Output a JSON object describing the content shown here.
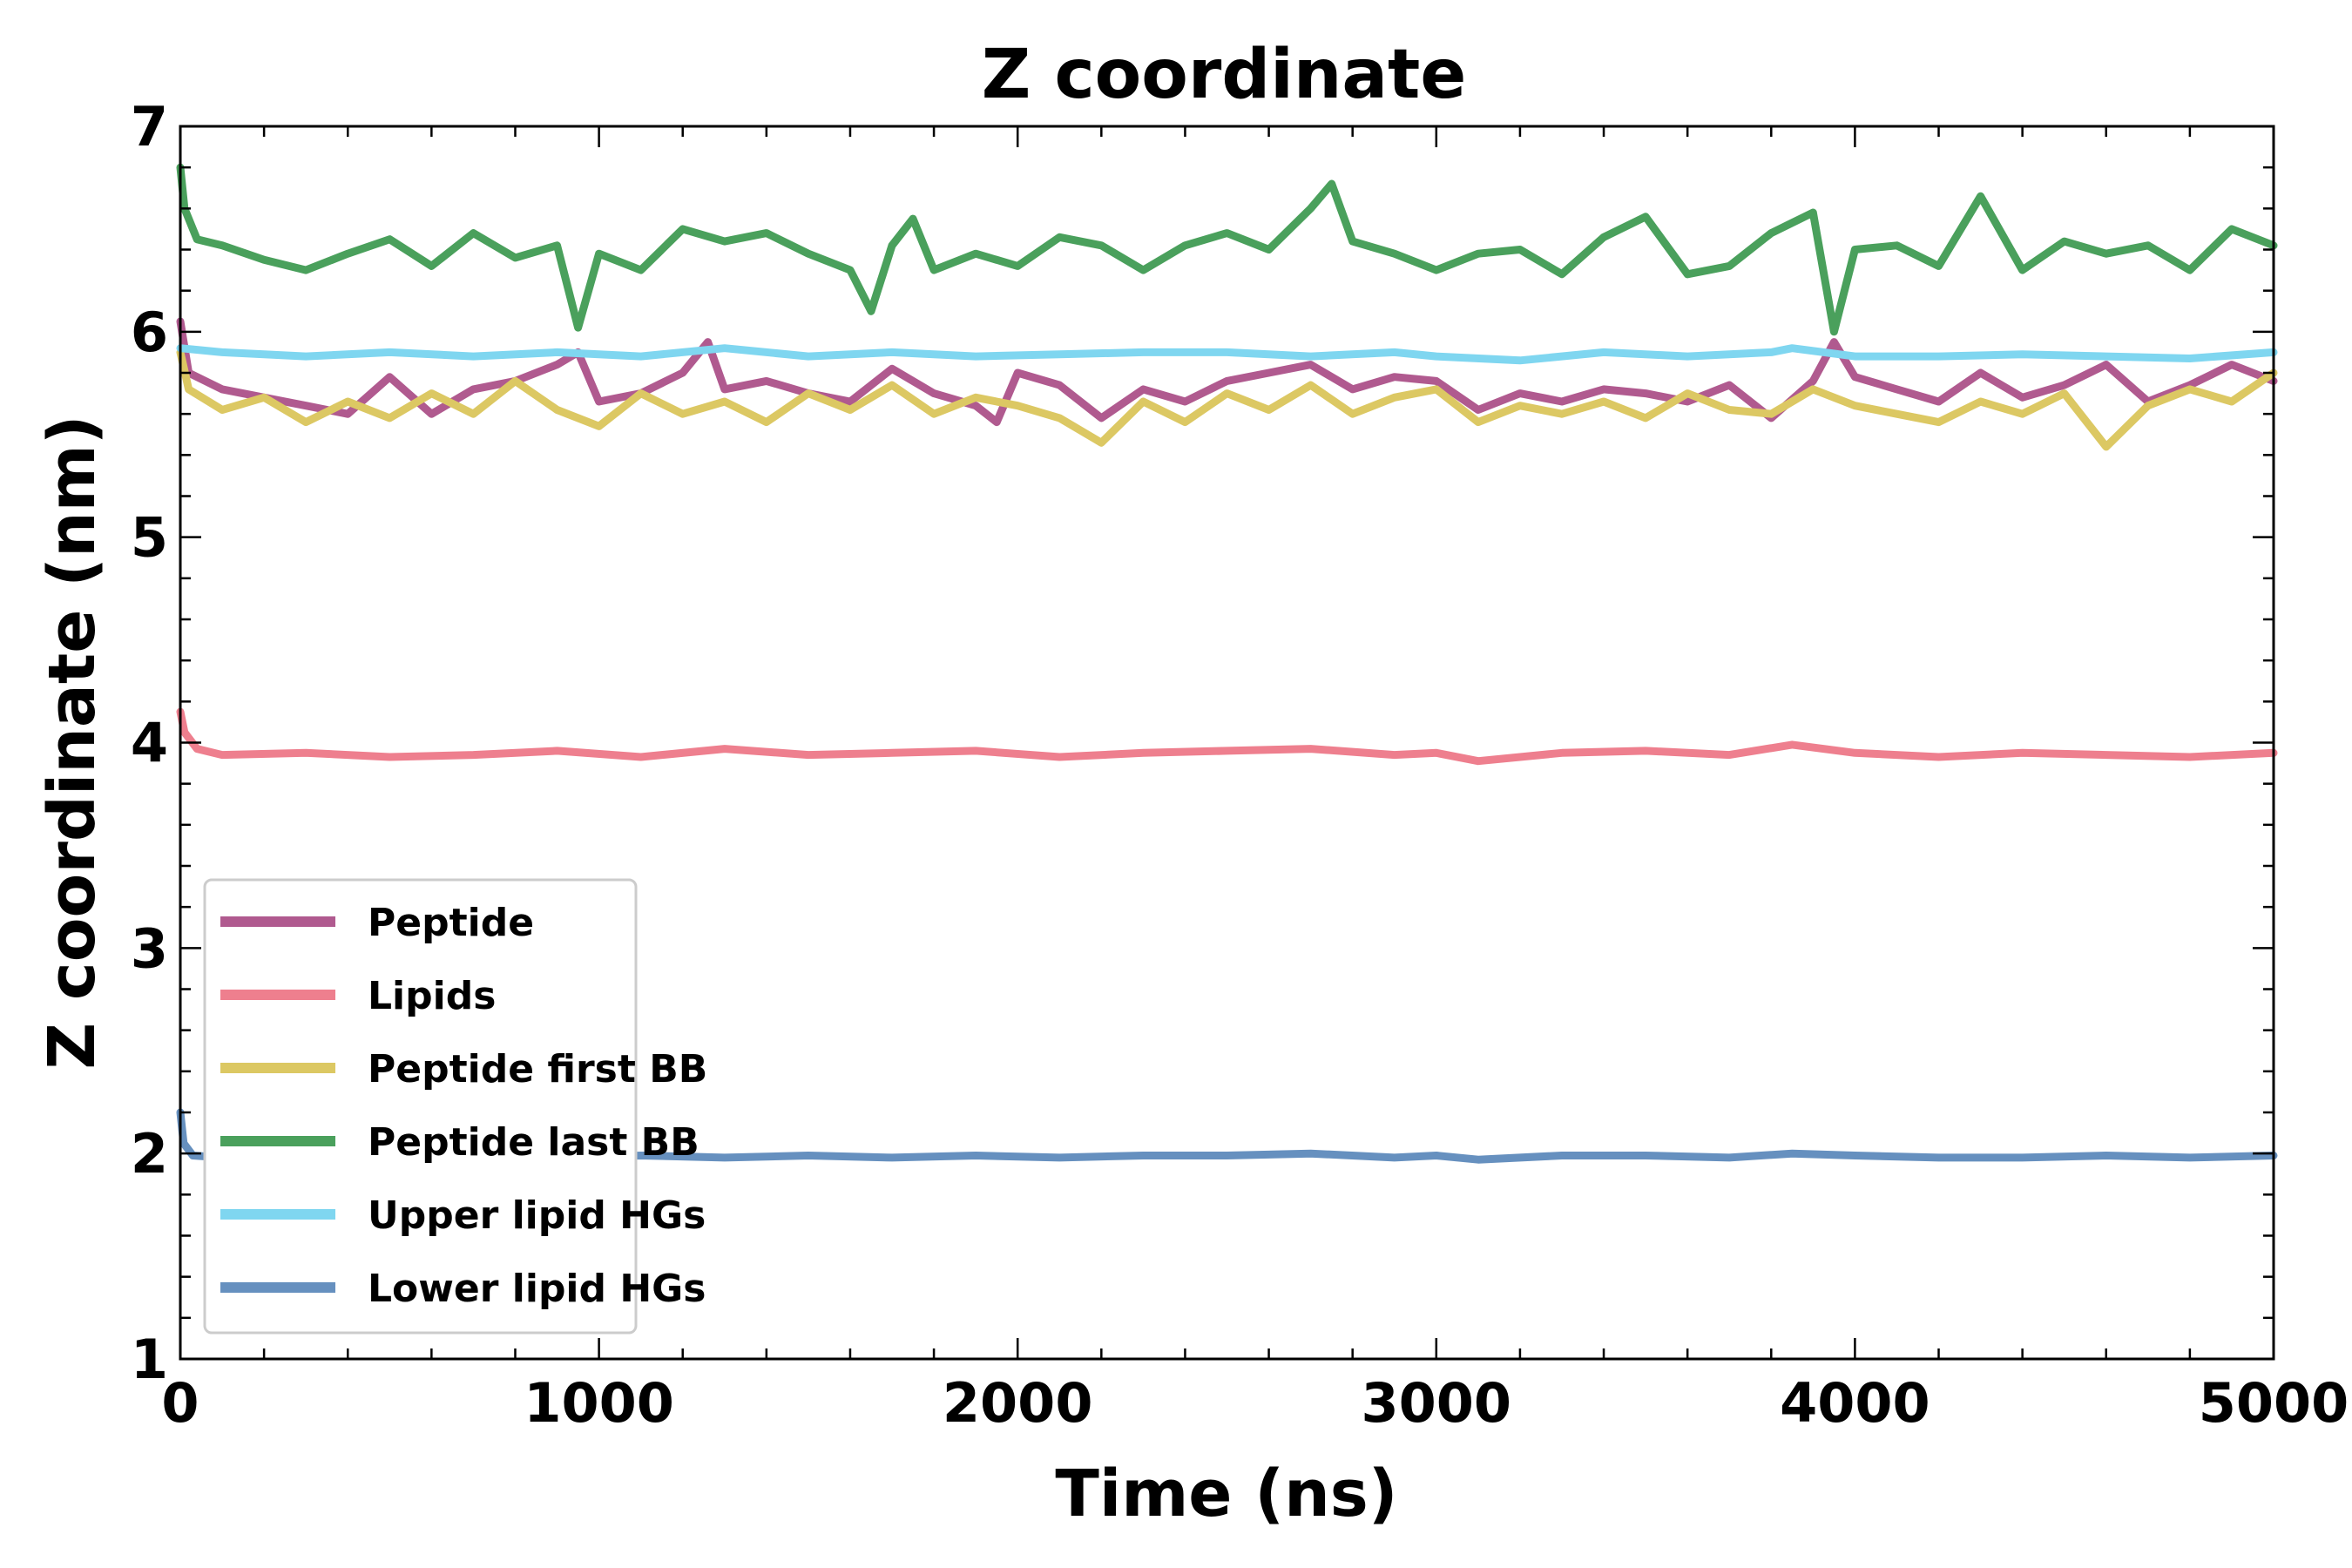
{
  "chart_data": {
    "type": "line",
    "title": "Z coordinate",
    "xlabel": "Time (ns)",
    "ylabel": "Z coordinate (nm)",
    "xlim": [
      0,
      5000
    ],
    "ylim": [
      1,
      7
    ],
    "xticks": [
      0,
      1000,
      2000,
      3000,
      4000,
      5000
    ],
    "yticks": [
      1,
      2,
      3,
      4,
      5,
      6,
      7
    ],
    "x_minor_step": 200,
    "y_minor_step": 0.2,
    "grid": false,
    "legend_position": "lower-left",
    "series": [
      {
        "name": "Peptide",
        "color": "#b05a8f",
        "x": [
          0,
          20,
          100,
          200,
          300,
          400,
          500,
          600,
          700,
          800,
          900,
          950,
          1000,
          1100,
          1200,
          1260,
          1300,
          1400,
          1500,
          1600,
          1700,
          1800,
          1900,
          1950,
          2000,
          2100,
          2200,
          2300,
          2400,
          2500,
          2600,
          2700,
          2800,
          2900,
          3000,
          3100,
          3200,
          3300,
          3400,
          3500,
          3600,
          3700,
          3800,
          3900,
          3950,
          4000,
          4100,
          4200,
          4300,
          4400,
          4500,
          4600,
          4700,
          4800,
          4900,
          5000
        ],
        "y": [
          6.05,
          5.8,
          5.72,
          5.68,
          5.64,
          5.6,
          5.78,
          5.6,
          5.72,
          5.76,
          5.84,
          5.9,
          5.66,
          5.7,
          5.8,
          5.95,
          5.72,
          5.76,
          5.7,
          5.66,
          5.82,
          5.7,
          5.64,
          5.56,
          5.8,
          5.74,
          5.58,
          5.72,
          5.66,
          5.76,
          5.8,
          5.84,
          5.72,
          5.78,
          5.76,
          5.62,
          5.7,
          5.66,
          5.72,
          5.7,
          5.66,
          5.74,
          5.58,
          5.76,
          5.95,
          5.78,
          5.72,
          5.66,
          5.8,
          5.68,
          5.74,
          5.84,
          5.66,
          5.74,
          5.84,
          5.76
        ]
      },
      {
        "name": "Lipids",
        "color": "#ee7f8e",
        "x": [
          0,
          10,
          40,
          100,
          300,
          500,
          700,
          900,
          1100,
          1300,
          1500,
          1700,
          1900,
          2100,
          2300,
          2500,
          2700,
          2900,
          3000,
          3100,
          3300,
          3500,
          3700,
          3850,
          4000,
          4200,
          4400,
          4600,
          4800,
          5000
        ],
        "y": [
          4.15,
          4.05,
          3.97,
          3.94,
          3.95,
          3.93,
          3.94,
          3.96,
          3.93,
          3.97,
          3.94,
          3.95,
          3.96,
          3.93,
          3.95,
          3.96,
          3.97,
          3.94,
          3.95,
          3.91,
          3.95,
          3.96,
          3.94,
          3.99,
          3.95,
          3.93,
          3.95,
          3.94,
          3.93,
          3.95
        ]
      },
      {
        "name": "Peptide first BB",
        "color": "#dcc863",
        "x": [
          0,
          20,
          100,
          200,
          300,
          400,
          500,
          600,
          700,
          800,
          900,
          1000,
          1100,
          1200,
          1300,
          1400,
          1500,
          1600,
          1700,
          1800,
          1900,
          2000,
          2100,
          2200,
          2300,
          2400,
          2500,
          2600,
          2700,
          2800,
          2900,
          3000,
          3100,
          3200,
          3300,
          3400,
          3500,
          3600,
          3700,
          3800,
          3900,
          4000,
          4100,
          4200,
          4300,
          4400,
          4500,
          4600,
          4700,
          4800,
          4900,
          5000
        ],
        "y": [
          5.9,
          5.72,
          5.62,
          5.68,
          5.56,
          5.66,
          5.58,
          5.7,
          5.6,
          5.76,
          5.62,
          5.54,
          5.7,
          5.6,
          5.66,
          5.56,
          5.7,
          5.62,
          5.74,
          5.6,
          5.68,
          5.64,
          5.58,
          5.46,
          5.66,
          5.56,
          5.7,
          5.62,
          5.74,
          5.6,
          5.68,
          5.72,
          5.56,
          5.64,
          5.6,
          5.66,
          5.58,
          5.7,
          5.62,
          5.6,
          5.72,
          5.64,
          5.6,
          5.56,
          5.66,
          5.6,
          5.7,
          5.44,
          5.64,
          5.72,
          5.66,
          5.8
        ]
      },
      {
        "name": "Peptide last BB",
        "color": "#4aa05c",
        "x": [
          0,
          10,
          40,
          100,
          200,
          300,
          400,
          500,
          600,
          700,
          800,
          900,
          950,
          1000,
          1100,
          1200,
          1300,
          1400,
          1500,
          1600,
          1650,
          1700,
          1750,
          1800,
          1900,
          2000,
          2100,
          2200,
          2300,
          2400,
          2500,
          2600,
          2700,
          2750,
          2800,
          2900,
          3000,
          3100,
          3200,
          3300,
          3400,
          3500,
          3600,
          3700,
          3800,
          3900,
          3950,
          4000,
          4100,
          4200,
          4300,
          4400,
          4500,
          4600,
          4700,
          4800,
          4900,
          5000
        ],
        "y": [
          6.8,
          6.6,
          6.45,
          6.42,
          6.35,
          6.3,
          6.38,
          6.45,
          6.32,
          6.48,
          6.36,
          6.42,
          6.02,
          6.38,
          6.3,
          6.5,
          6.44,
          6.48,
          6.38,
          6.3,
          6.1,
          6.42,
          6.55,
          6.3,
          6.38,
          6.32,
          6.46,
          6.42,
          6.3,
          6.42,
          6.48,
          6.4,
          6.6,
          6.72,
          6.44,
          6.38,
          6.3,
          6.38,
          6.4,
          6.28,
          6.46,
          6.56,
          6.28,
          6.32,
          6.48,
          6.58,
          6.0,
          6.4,
          6.42,
          6.32,
          6.66,
          6.3,
          6.44,
          6.38,
          6.42,
          6.3,
          6.5,
          6.42
        ]
      },
      {
        "name": "Upper lipid HGs",
        "color": "#7fd6f0",
        "x": [
          0,
          100,
          300,
          500,
          700,
          900,
          1100,
          1300,
          1500,
          1700,
          1900,
          2100,
          2300,
          2500,
          2700,
          2900,
          3000,
          3200,
          3400,
          3600,
          3800,
          3850,
          4000,
          4200,
          4400,
          4600,
          4800,
          5000
        ],
        "y": [
          5.92,
          5.9,
          5.88,
          5.9,
          5.88,
          5.9,
          5.88,
          5.92,
          5.88,
          5.9,
          5.88,
          5.89,
          5.9,
          5.9,
          5.88,
          5.9,
          5.88,
          5.86,
          5.9,
          5.88,
          5.9,
          5.92,
          5.88,
          5.88,
          5.89,
          5.88,
          5.87,
          5.9
        ]
      },
      {
        "name": "Lower lipid HGs",
        "color": "#6690bf",
        "x": [
          0,
          8,
          30,
          100,
          300,
          500,
          700,
          900,
          1100,
          1300,
          1500,
          1700,
          1900,
          2100,
          2300,
          2500,
          2700,
          2900,
          3000,
          3100,
          3300,
          3500,
          3700,
          3850,
          4000,
          4200,
          4400,
          4600,
          4800,
          5000
        ],
        "y": [
          2.2,
          2.05,
          1.99,
          1.98,
          1.98,
          1.98,
          1.99,
          1.98,
          1.99,
          1.98,
          1.99,
          1.98,
          1.99,
          1.98,
          1.99,
          1.99,
          2.0,
          1.98,
          1.99,
          1.97,
          1.99,
          1.99,
          1.98,
          2.0,
          1.99,
          1.98,
          1.98,
          1.99,
          1.98,
          1.99
        ]
      }
    ]
  }
}
